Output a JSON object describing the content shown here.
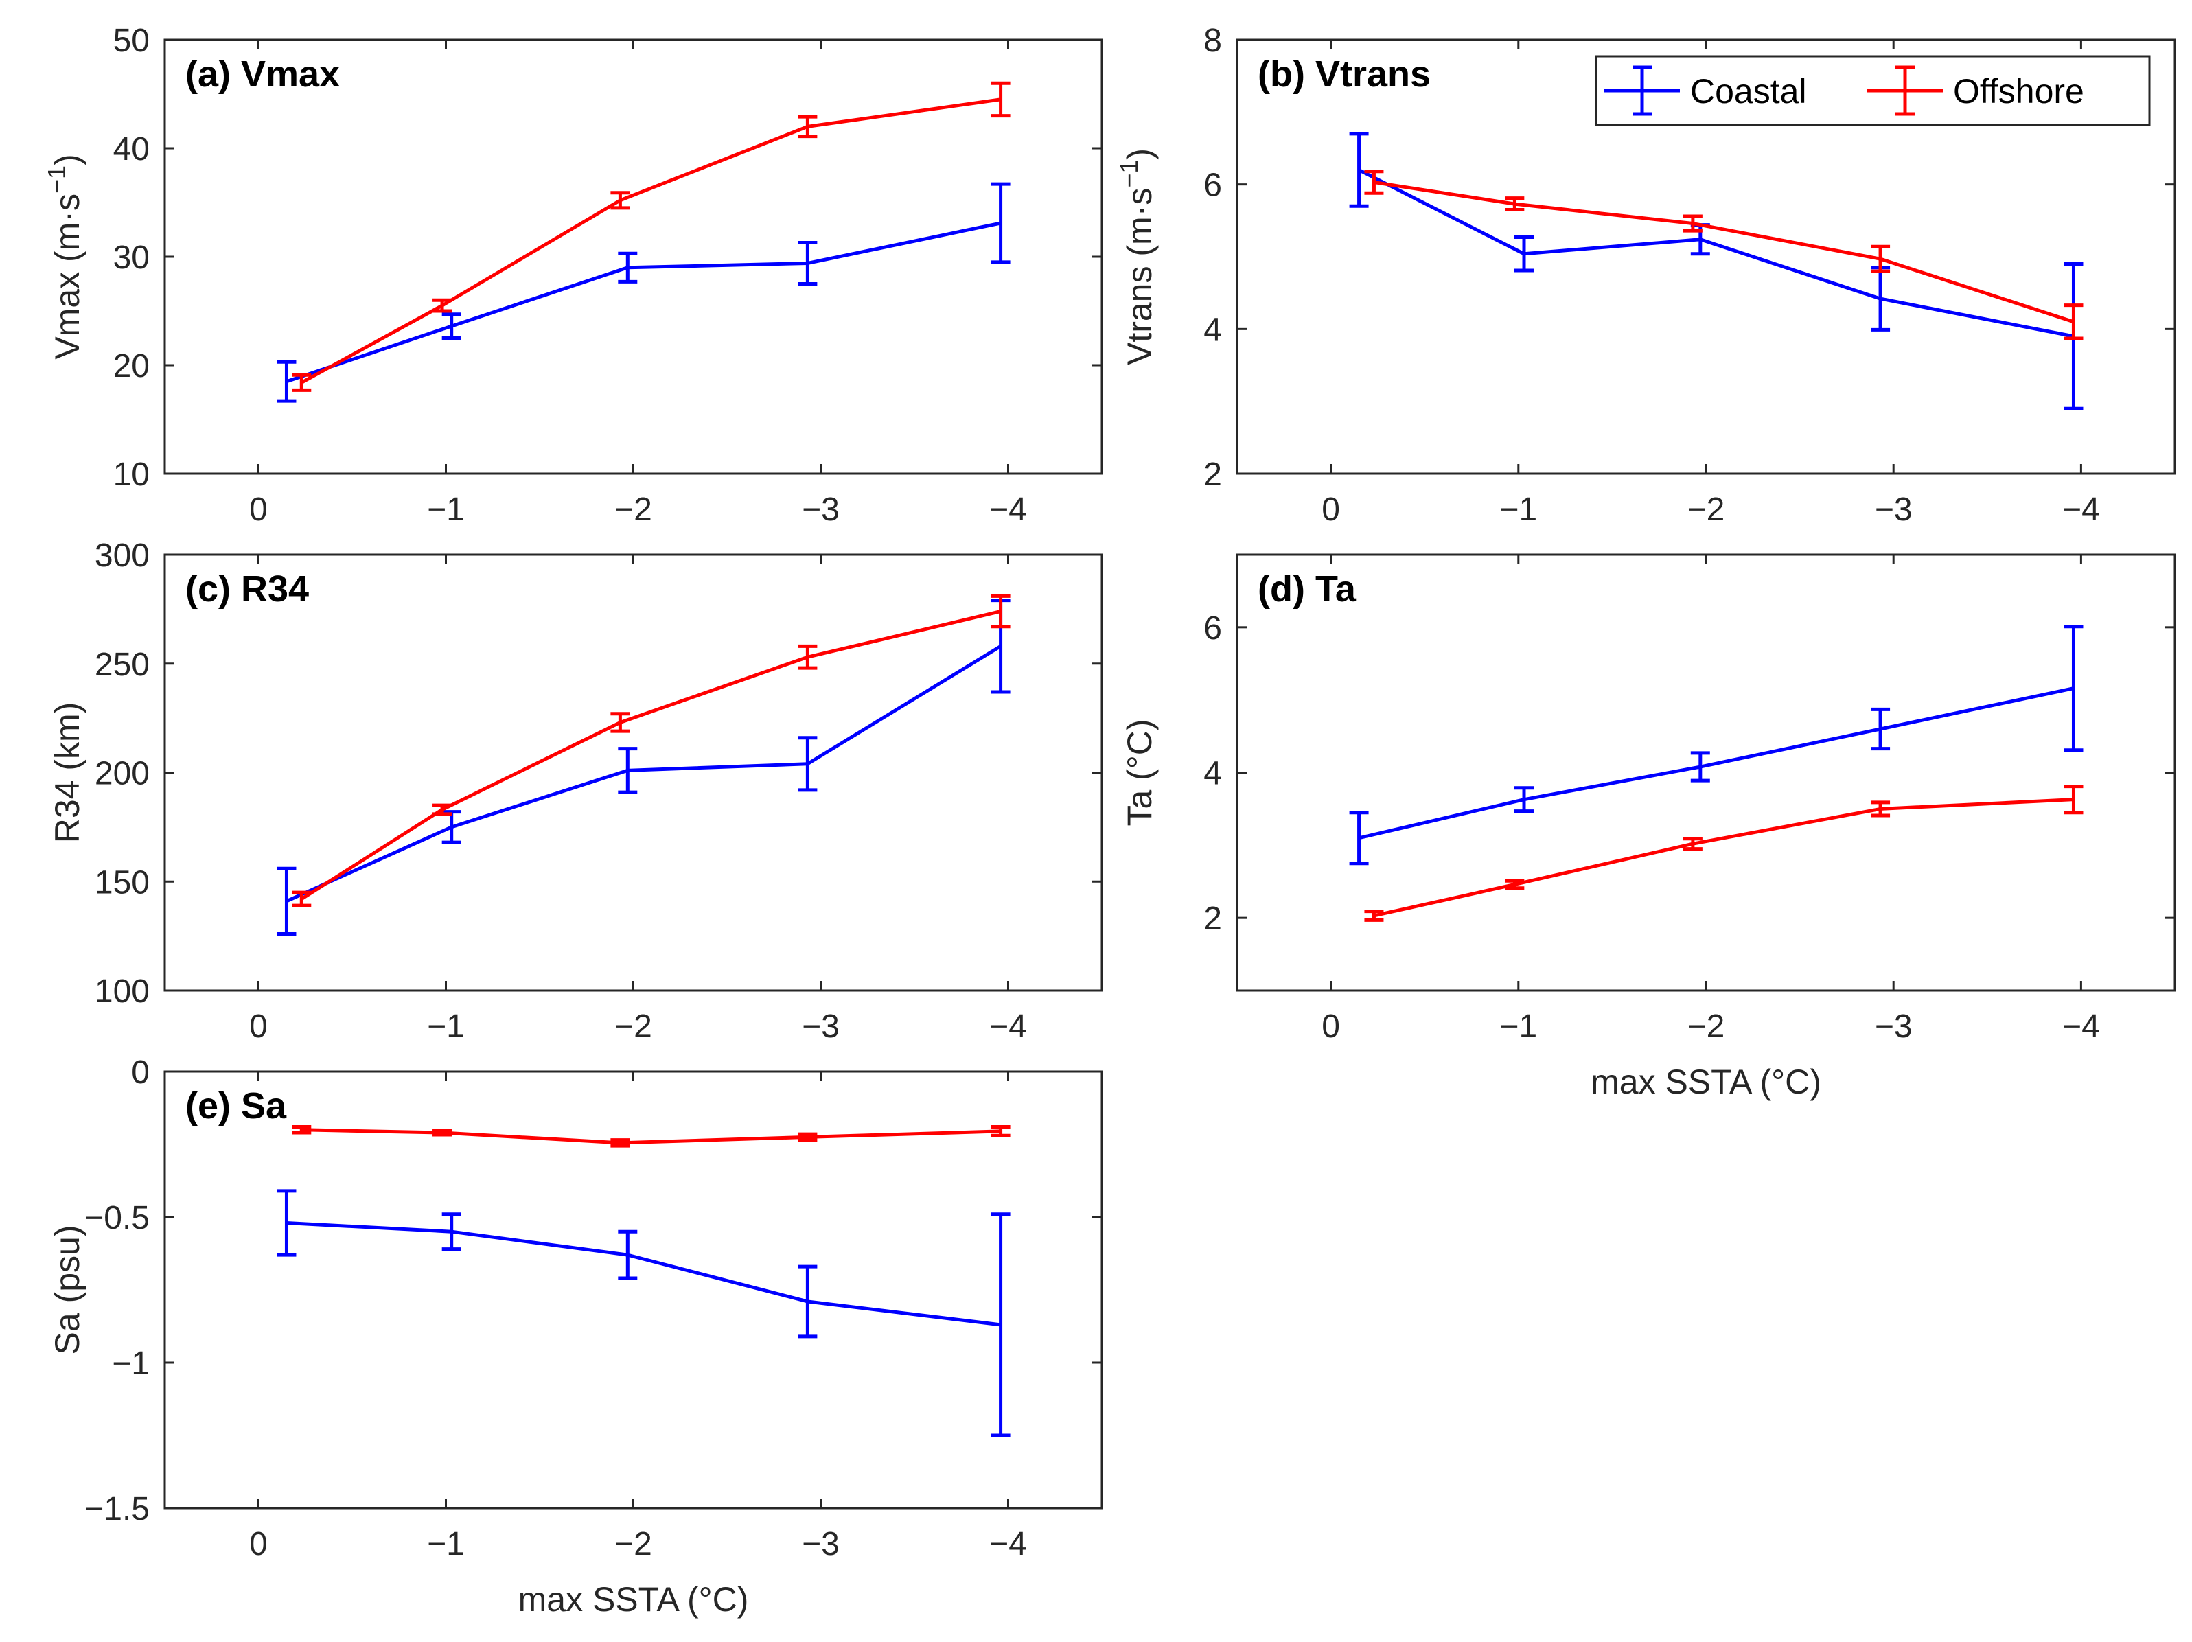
{
  "chart_data": [
    {
      "type": "line",
      "title": "(a) Vmax",
      "xlabel": "",
      "ylabel": "Vmax (m·s",
      "ylabel_unit_exponent": "−1",
      "ylabel_close": ")",
      "xlim": [
        0.5,
        -4.5
      ],
      "ylim": [
        10,
        50
      ],
      "xticks": [
        0,
        -1,
        -2,
        -3,
        -4
      ],
      "xtick_labels": [
        "0",
        "−1",
        "−2",
        "−3",
        "−4"
      ],
      "yticks": [
        10,
        20,
        30,
        40,
        50
      ],
      "ytick_labels": [
        "10",
        "20",
        "30",
        "40",
        "50"
      ],
      "grid": false,
      "series": [
        {
          "name": "Coastal",
          "color": "#0000ff",
          "x": [
            -0.15,
            -1.03,
            -1.97,
            -2.93,
            -3.96
          ],
          "y": [
            18.5,
            23.6,
            29.0,
            29.4,
            33.1
          ],
          "err": [
            1.8,
            1.1,
            1.3,
            1.9,
            3.6
          ]
        },
        {
          "name": "Offshore",
          "color": "#ff0000",
          "x": [
            -0.23,
            -0.98,
            -1.93,
            -2.93,
            -3.96
          ],
          "y": [
            18.4,
            25.5,
            35.2,
            42.0,
            44.5
          ],
          "err": [
            0.7,
            0.5,
            0.7,
            0.9,
            1.5
          ]
        }
      ]
    },
    {
      "type": "line",
      "title": "(b) Vtrans",
      "xlabel": "",
      "ylabel": "Vtrans (m·s",
      "ylabel_unit_exponent": "−1",
      "ylabel_close": ")",
      "xlim": [
        0.5,
        -4.5
      ],
      "ylim": [
        2,
        8
      ],
      "xticks": [
        0,
        -1,
        -2,
        -3,
        -4
      ],
      "xtick_labels": [
        "0",
        "−1",
        "−2",
        "−3",
        "−4"
      ],
      "yticks": [
        2,
        4,
        6,
        8
      ],
      "ytick_labels": [
        "2",
        "4",
        "6",
        "8"
      ],
      "grid": false,
      "legend": {
        "position": "top-right",
        "entries": [
          "Coastal",
          "Offshore"
        ]
      },
      "series": [
        {
          "name": "Coastal",
          "color": "#0000ff",
          "x": [
            -0.15,
            -1.03,
            -1.97,
            -2.93,
            -3.96
          ],
          "y": [
            6.2,
            5.04,
            5.24,
            4.42,
            3.9
          ],
          "err": [
            0.5,
            0.23,
            0.2,
            0.43,
            1.0
          ]
        },
        {
          "name": "Offshore",
          "color": "#ff0000",
          "x": [
            -0.23,
            -0.98,
            -1.93,
            -2.93,
            -3.96
          ],
          "y": [
            6.03,
            5.73,
            5.46,
            4.97,
            4.1
          ],
          "err": [
            0.15,
            0.08,
            0.1,
            0.17,
            0.23
          ]
        }
      ]
    },
    {
      "type": "line",
      "title": "(c) R34",
      "xlabel": "",
      "ylabel": "R34 (km)",
      "xlim": [
        0.5,
        -4.5
      ],
      "ylim": [
        100,
        300
      ],
      "xticks": [
        0,
        -1,
        -2,
        -3,
        -4
      ],
      "xtick_labels": [
        "0",
        "−1",
        "−2",
        "−3",
        "−4"
      ],
      "yticks": [
        100,
        150,
        200,
        250,
        300
      ],
      "ytick_labels": [
        "100",
        "150",
        "200",
        "250",
        "300"
      ],
      "grid": false,
      "series": [
        {
          "name": "Coastal",
          "color": "#0000ff",
          "x": [
            -0.15,
            -1.03,
            -1.97,
            -2.93,
            -3.96
          ],
          "y": [
            141,
            175,
            201,
            204,
            258
          ],
          "err": [
            15,
            7,
            10,
            12,
            21
          ]
        },
        {
          "name": "Offshore",
          "color": "#ff0000",
          "x": [
            -0.23,
            -0.98,
            -1.93,
            -2.93,
            -3.96
          ],
          "y": [
            142,
            183,
            223,
            253,
            274
          ],
          "err": [
            3,
            2,
            4,
            5,
            7
          ]
        }
      ]
    },
    {
      "type": "line",
      "title": "(d) Ta",
      "xlabel": "max SSTA (°C)",
      "ylabel": "Ta (°C)",
      "xlim": [
        0.5,
        -4.5
      ],
      "ylim": [
        1,
        7
      ],
      "xticks": [
        0,
        -1,
        -2,
        -3,
        -4
      ],
      "xtick_labels": [
        "0",
        "−1",
        "−2",
        "−3",
        "−4"
      ],
      "yticks": [
        2,
        4,
        6
      ],
      "ytick_labels": [
        "2",
        "4",
        "6"
      ],
      "grid": false,
      "series": [
        {
          "name": "Coastal",
          "color": "#0000ff",
          "x": [
            -0.15,
            -1.03,
            -1.97,
            -2.93,
            -3.96
          ],
          "y": [
            3.1,
            3.63,
            4.08,
            4.6,
            5.16
          ],
          "err": [
            0.35,
            0.16,
            0.19,
            0.27,
            0.85
          ]
        },
        {
          "name": "Offshore",
          "color": "#ff0000",
          "x": [
            -0.23,
            -0.98,
            -1.93,
            -2.93,
            -3.96
          ],
          "y": [
            2.03,
            2.46,
            3.02,
            3.5,
            3.63
          ],
          "err": [
            0.06,
            0.05,
            0.07,
            0.09,
            0.18
          ]
        }
      ]
    },
    {
      "type": "line",
      "title": "(e) Sa",
      "xlabel": "max SSTA (°C)",
      "ylabel": "Sa (psu)",
      "xlim": [
        0.5,
        -4.5
      ],
      "ylim": [
        -1.5,
        0
      ],
      "xticks": [
        0,
        -1,
        -2,
        -3,
        -4
      ],
      "xtick_labels": [
        "0",
        "−1",
        "−2",
        "−3",
        "−4"
      ],
      "yticks": [
        -1.5,
        -1,
        -0.5,
        0
      ],
      "ytick_labels": [
        "−1.5",
        "−1",
        "−0.5",
        "0"
      ],
      "grid": false,
      "series": [
        {
          "name": "Coastal",
          "color": "#0000ff",
          "x": [
            -0.15,
            -1.03,
            -1.97,
            -2.93,
            -3.96
          ],
          "y": [
            -0.52,
            -0.55,
            -0.63,
            -0.79,
            -0.87
          ],
          "err": [
            0.11,
            0.06,
            0.08,
            0.12,
            0.38
          ]
        },
        {
          "name": "Offshore",
          "color": "#ff0000",
          "x": [
            -0.23,
            -0.98,
            -1.93,
            -2.93,
            -3.96
          ],
          "y": [
            -0.2,
            -0.21,
            -0.245,
            -0.225,
            -0.205
          ],
          "err": [
            0.01,
            0.007,
            0.01,
            0.01,
            0.015
          ]
        }
      ]
    }
  ]
}
